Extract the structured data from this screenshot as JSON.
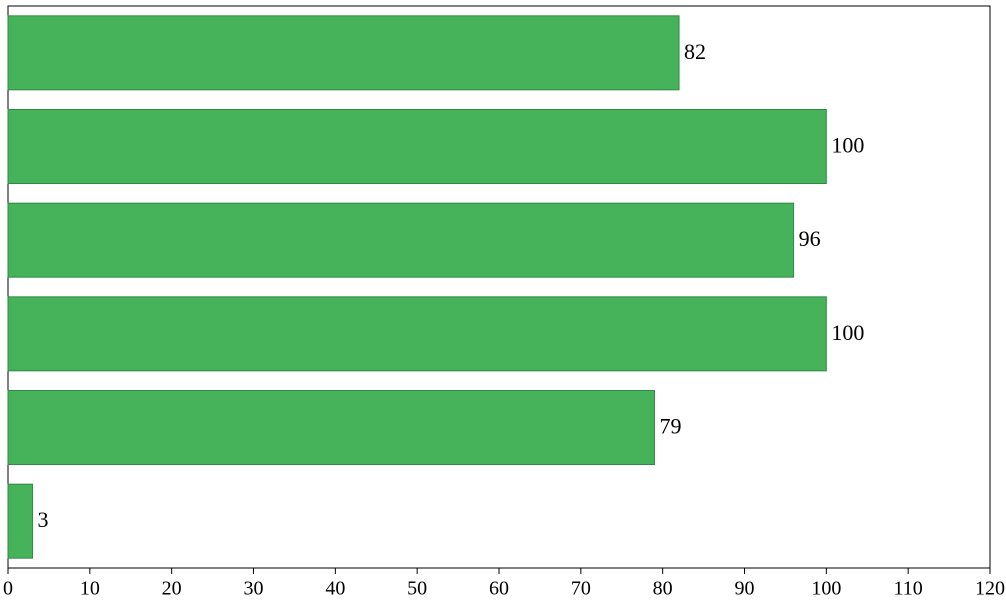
{
  "chart_data": {
    "type": "barh",
    "categories": [
      null,
      null,
      null,
      null,
      null,
      null
    ],
    "values": [
      82,
      100,
      96,
      100,
      79,
      3
    ],
    "color": "#46b35b",
    "xlim": [
      0,
      120
    ],
    "xticks": [
      0,
      10,
      20,
      30,
      40,
      50,
      60,
      70,
      80,
      90,
      100,
      110,
      120
    ],
    "grid": false
  }
}
